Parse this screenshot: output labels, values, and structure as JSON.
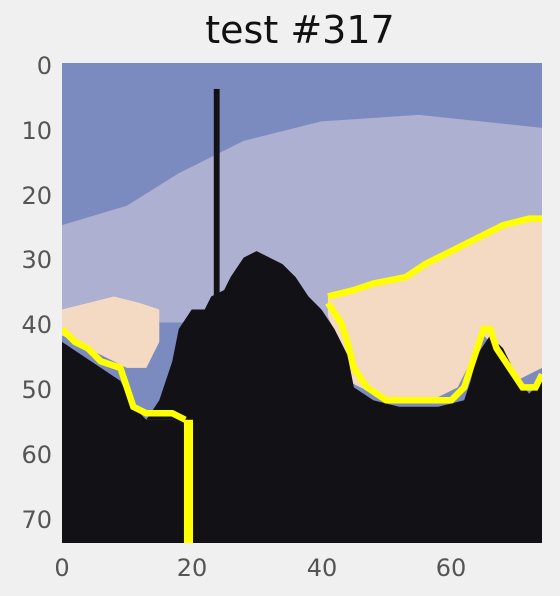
{
  "title": "test #317",
  "axes": {
    "x_ticks": [
      "0",
      "20",
      "40",
      "60"
    ],
    "y_ticks": [
      "0",
      "10",
      "20",
      "30",
      "40",
      "50",
      "60",
      "70"
    ],
    "xlim": [
      0,
      74
    ],
    "ylim": [
      74,
      0
    ]
  },
  "image": {
    "colors": {
      "sky_dark": "#7c8bbf",
      "sky_light": "#aeb0d2",
      "peach": "#f4dac3",
      "mountain": "#121116",
      "highlight": "#ffff00"
    }
  }
}
